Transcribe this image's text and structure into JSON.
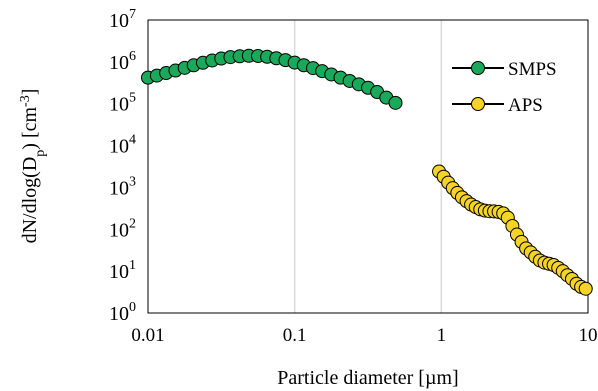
{
  "chart_data": {
    "type": "scatter",
    "x_scale": "log",
    "y_scale": "log",
    "xlim": [
      0.01,
      10
    ],
    "ylim": [
      1,
      10000000
    ],
    "xlabel": "Particle diameter [µm]",
    "ylabel": "dN/dlog(D_p) [cm^-3]",
    "ylabel_parts": {
      "pre": "dN/dlog(D",
      "sub": "p",
      "mid": ") [cm",
      "sup": "-3",
      "post": "]"
    },
    "x_ticks": [
      {
        "value": 0.01,
        "label": "0.01"
      },
      {
        "value": 0.1,
        "label": "0.1"
      },
      {
        "value": 1,
        "label": "1"
      },
      {
        "value": 10,
        "label": "10"
      }
    ],
    "y_ticks": [
      {
        "value": 1,
        "base": "10",
        "exp": "0"
      },
      {
        "value": 10,
        "base": "10",
        "exp": "1"
      },
      {
        "value": 100,
        "base": "10",
        "exp": "2"
      },
      {
        "value": 1000,
        "base": "10",
        "exp": "3"
      },
      {
        "value": 10000,
        "base": "10",
        "exp": "4"
      },
      {
        "value": 100000,
        "base": "10",
        "exp": "5"
      },
      {
        "value": 1000000,
        "base": "10",
        "exp": "6"
      },
      {
        "value": 10000000,
        "base": "10",
        "exp": "7"
      }
    ],
    "grid": {
      "vertical": true,
      "horizontal": false
    },
    "legend_position": "top-right",
    "series": [
      {
        "name": "SMPS",
        "color": "#1aa85a",
        "x": [
          0.01,
          0.0115,
          0.0133,
          0.0154,
          0.0178,
          0.0205,
          0.0237,
          0.0274,
          0.0316,
          0.0365,
          0.0422,
          0.0487,
          0.0562,
          0.0649,
          0.075,
          0.0866,
          0.1,
          0.1155,
          0.1334,
          0.154,
          0.1778,
          0.2054,
          0.2371,
          0.2738,
          0.3162,
          0.3652,
          0.4217,
          0.487
        ],
        "y": [
          420000,
          470000,
          540000,
          620000,
          720000,
          830000,
          950000,
          1080000,
          1200000,
          1300000,
          1360000,
          1400000,
          1380000,
          1320000,
          1220000,
          1100000,
          960000,
          830000,
          710000,
          600000,
          500000,
          420000,
          350000,
          290000,
          240000,
          190000,
          140000,
          105000
        ]
      },
      {
        "name": "APS",
        "color": "#f5d327",
        "x": [
          0.965,
          1.037,
          1.114,
          1.197,
          1.286,
          1.382,
          1.486,
          1.596,
          1.715,
          1.843,
          1.981,
          2.129,
          2.288,
          2.458,
          2.642,
          2.839,
          3.051,
          3.278,
          3.523,
          3.786,
          4.068,
          4.371,
          4.698,
          5.048,
          5.425,
          5.829,
          6.264,
          6.732,
          7.234,
          7.774,
          8.354,
          8.977,
          9.647
        ],
        "y": [
          2400,
          1800,
          1300,
          960,
          740,
          580,
          470,
          390,
          340,
          300,
          280,
          270,
          268,
          260,
          240,
          190,
          120,
          75,
          50,
          35,
          28,
          22,
          18,
          16,
          15,
          14,
          12,
          10,
          8,
          6.5,
          5,
          4.2,
          3.8
        ]
      }
    ]
  }
}
